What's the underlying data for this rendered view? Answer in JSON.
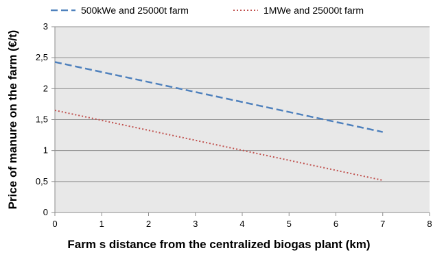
{
  "chart_data": {
    "type": "line",
    "title": "",
    "xlabel": "Farm s distance from the centralized biogas plant (km)",
    "ylabel": "Price of manure on the farm (€/t)",
    "xlim": [
      0,
      8
    ],
    "ylim": [
      0,
      3
    ],
    "x_ticks": [
      0,
      1,
      2,
      3,
      4,
      5,
      6,
      7,
      8
    ],
    "x_tick_labels": [
      "0",
      "1",
      "2",
      "3",
      "4",
      "5",
      "6",
      "7",
      "8"
    ],
    "y_ticks": [
      0,
      0.5,
      1,
      1.5,
      2,
      2.5,
      3
    ],
    "y_tick_labels": [
      "0",
      "0,5",
      "1",
      "1,5",
      "2",
      "2,5",
      "3"
    ],
    "grid": "horizontal",
    "legend_position": "top",
    "plot_background": "#e8e8e8",
    "series": [
      {
        "name": "500kWe and 25000t farm",
        "x": [
          0,
          7
        ],
        "y": [
          2.43,
          1.3
        ],
        "color": "#4f81bd",
        "style": "dashed"
      },
      {
        "name": "1MWe and 25000t farm",
        "x": [
          0,
          7
        ],
        "y": [
          1.65,
          0.52
        ],
        "color": "#c0504d",
        "style": "dotted"
      }
    ]
  }
}
